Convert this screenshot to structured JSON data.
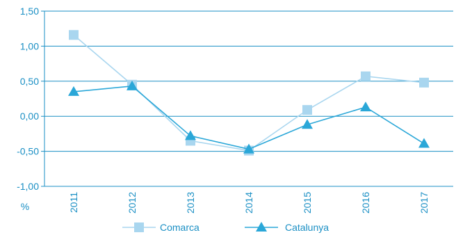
{
  "chart_data": {
    "type": "line",
    "categories": [
      "2011",
      "2012",
      "2013",
      "2014",
      "2015",
      "2016",
      "2017"
    ],
    "y_tick_labels": [
      "1,50",
      "1,00",
      "0,50",
      "0,00",
      "-0,50",
      "-1,00"
    ],
    "y_ticks": [
      1.5,
      1.0,
      0.5,
      0.0,
      -0.5,
      -1.0
    ],
    "ylim": [
      -1.0,
      1.5
    ],
    "ylabel": "%",
    "legend_position": "bottom",
    "grid": "horizontal",
    "series": [
      {
        "name": "Comarca",
        "marker": "square",
        "color": "#a9d6ef",
        "values": [
          1.16,
          0.45,
          -0.35,
          -0.49,
          0.09,
          0.57,
          0.48
        ]
      },
      {
        "name": "Catalunya",
        "marker": "triangle",
        "color": "#2aa7d8",
        "values": [
          0.35,
          0.43,
          -0.28,
          -0.47,
          -0.12,
          0.13,
          -0.39
        ]
      }
    ],
    "colors": {
      "axis": "#1a8fc4",
      "grid": "#1a8fc4",
      "text": "#1a8fc4"
    }
  }
}
